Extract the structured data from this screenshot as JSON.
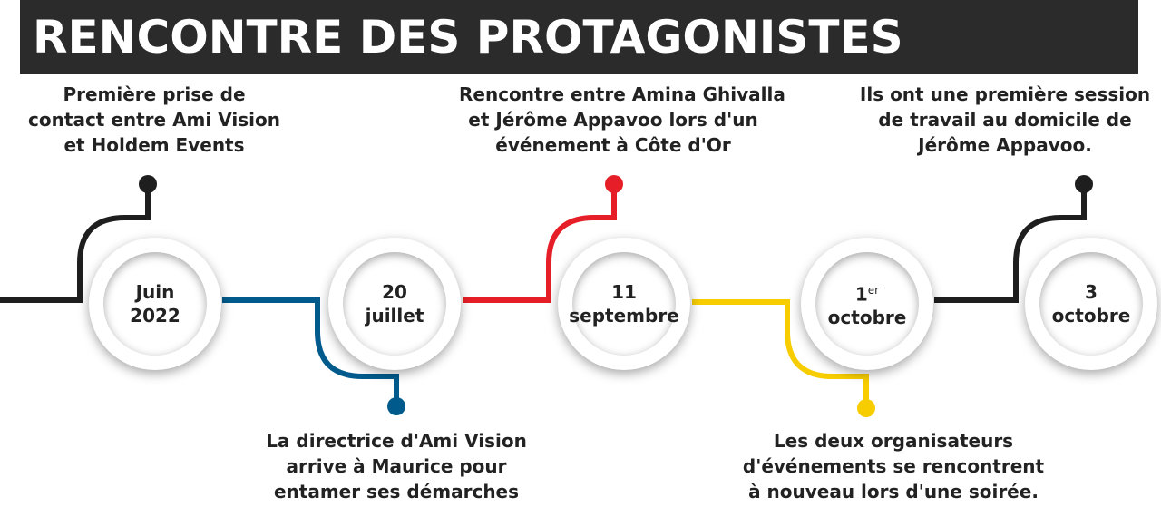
{
  "title": "RENCONTRE DES PROTAGONISTES",
  "colors": {
    "black": "#1e1e1e",
    "blue": "#005b8c",
    "red": "#e61e27",
    "yellow": "#f7cd00",
    "title_bg": "#2b2b2b"
  },
  "events": [
    {
      "date_line1": "Juin",
      "date_sup": "",
      "date_line2": "2022",
      "color": "black",
      "position": "top",
      "text": [
        "Première prise de",
        "contact entre Ami Vision",
        "et Holdem Events"
      ]
    },
    {
      "date_line1": "20",
      "date_sup": "",
      "date_line2": "juillet",
      "color": "blue",
      "position": "bottom",
      "text": [
        "La directrice d'Ami Vision",
        "arrive à Maurice pour",
        "entamer ses démarches"
      ]
    },
    {
      "date_line1": "11",
      "date_sup": "",
      "date_line2": "septembre",
      "color": "red",
      "position": "top",
      "text": [
        "Rencontre entre Amina Ghivalla",
        "et Jérôme Appavoo lors d'un",
        "événement à Côte d'Or"
      ]
    },
    {
      "date_line1": "1",
      "date_sup": "er",
      "date_line2": "octobre",
      "color": "yellow",
      "position": "bottom",
      "text": [
        "Les deux organisateurs",
        "d'événements se rencontrent",
        "à nouveau lors d'une soirée."
      ]
    },
    {
      "date_line1": "3",
      "date_sup": "",
      "date_line2": "octobre",
      "color": "black",
      "position": "top",
      "text": [
        "Ils ont une première session",
        "de travail au domicile de",
        "Jérôme Appavoo."
      ]
    }
  ]
}
